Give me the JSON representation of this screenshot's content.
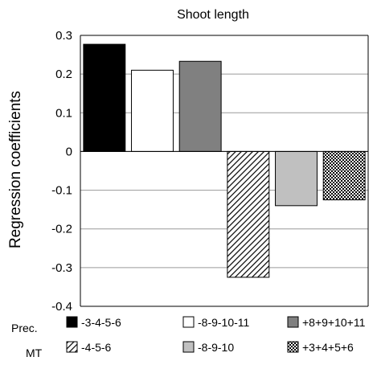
{
  "chart_data": {
    "type": "bar",
    "title": "Shoot length",
    "xlabel": "",
    "ylabel": "Regression coefficients",
    "ylim": [
      -0.4,
      0.3
    ],
    "yticks": [
      0.3,
      0.2,
      0.1,
      0,
      -0.1,
      -0.2,
      -0.3,
      -0.4
    ],
    "ytick_labels": [
      "0.3",
      "0.2",
      "0.1",
      "0",
      "-0.1",
      "-0.2",
      "-0.3",
      "-0.4"
    ],
    "grid": true,
    "legend_placement": "bottom",
    "bars": [
      {
        "group": "Prec.",
        "label": "-3-4-5-6",
        "value": 0.277,
        "pattern": "solid",
        "fill": "#000000"
      },
      {
        "group": "Prec.",
        "label": "-8-9-10-11",
        "value": 0.21,
        "pattern": "solid",
        "fill": "#ffffff"
      },
      {
        "group": "Prec.",
        "label": "+8+9+10+11",
        "value": 0.233,
        "pattern": "solid",
        "fill": "#808080"
      },
      {
        "group": "MT",
        "label": "-4-5-6",
        "value": -0.325,
        "pattern": "diagonal",
        "fill": "#ffffff"
      },
      {
        "group": "MT",
        "label": "-8-9-10",
        "value": -0.14,
        "pattern": "solid",
        "fill": "#c0c0c0"
      },
      {
        "group": "MT",
        "label": "+3+4+5+6",
        "value": -0.125,
        "pattern": "checker",
        "fill": "#ffffff"
      }
    ],
    "legend_groups": [
      "Prec.",
      "MT"
    ]
  }
}
